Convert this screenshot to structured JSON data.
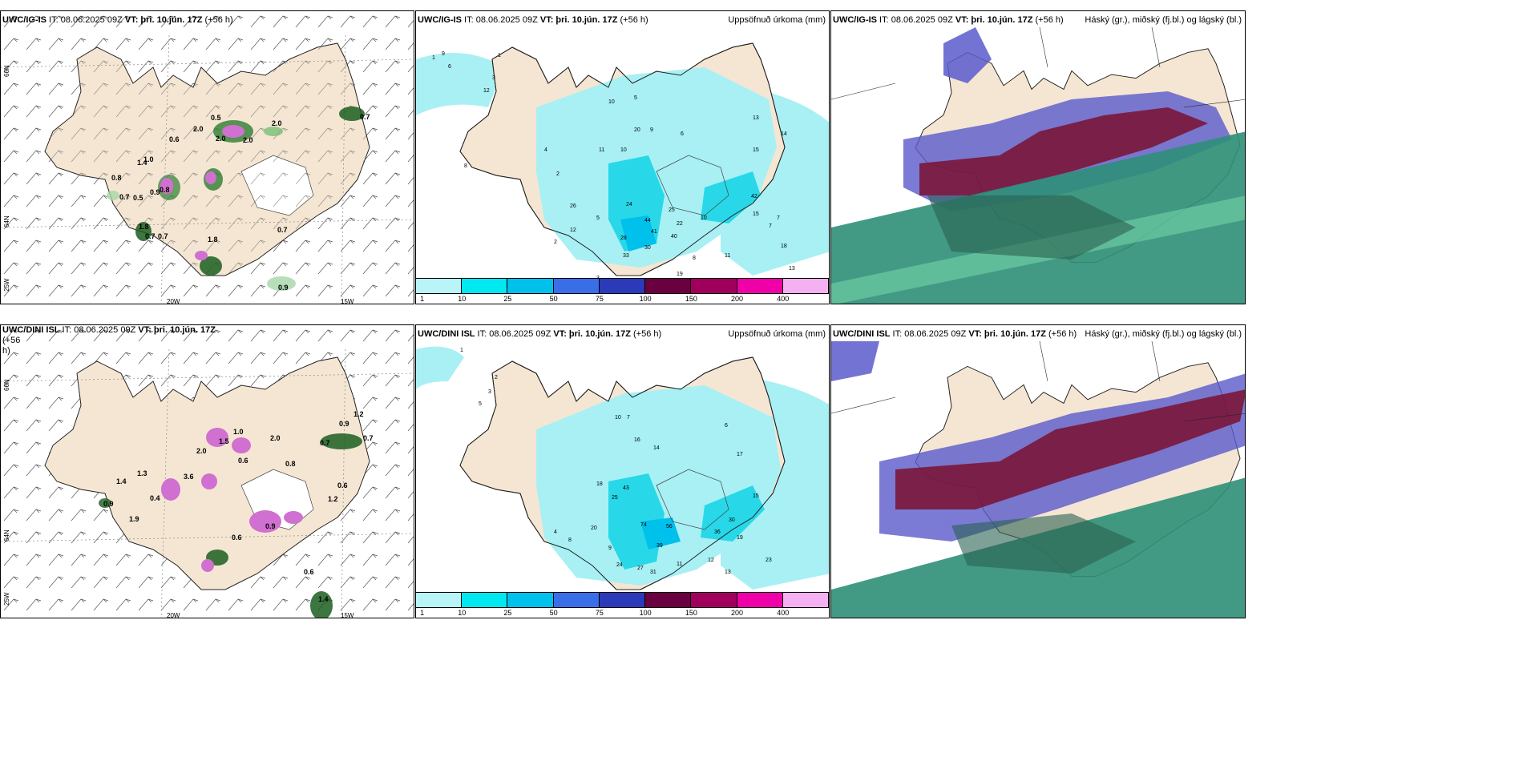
{
  "panels": {
    "p1": {
      "model": "UWC/IG-IS",
      "it": " IT: 08.06.2025 09Z ",
      "vt_label": "VT:",
      "vt_value": " þri. 10.jún. 17Z",
      "lead": " (+56 h)",
      "values": [
        "0.5",
        "2.0",
        "2.0",
        "2.0",
        "0.6",
        "2.0",
        "1.0",
        "1.4",
        "0.8",
        "0.7",
        "0.5",
        "0.9",
        "0.8",
        "0.7",
        "1.8",
        "0.7",
        "1.8",
        "0.7",
        "0.7",
        "0.9"
      ],
      "lat_labels": [
        "66N",
        "64N",
        "25W"
      ],
      "lon_labels": [
        "20W",
        "15W"
      ]
    },
    "p2": {
      "model": "UWC/IG-IS",
      "it": " IT: 08.06.2025 09Z ",
      "vt_label": "VT:",
      "vt_value": " þri. 10.jún. 17Z",
      "lead": " (+56 h)",
      "right_title": "Uppsöfnuð úrkoma (mm)",
      "values": [
        "1",
        "6",
        "9",
        "1",
        "3",
        "12",
        "4",
        "2",
        "10",
        "5",
        "20",
        "9",
        "6",
        "11",
        "10",
        "13",
        "15",
        "14",
        "7",
        "8",
        "42",
        "24",
        "44",
        "41",
        "25",
        "28",
        "35",
        "30",
        "33",
        "2",
        "11",
        "19",
        "10",
        "18",
        "13",
        "15",
        "12",
        "22",
        "40",
        "3",
        "8",
        "5",
        "26",
        "7"
      ]
    },
    "p3": {
      "model": "UWC/IG-IS",
      "it": " IT: 08.06.2025 09Z ",
      "vt_label": "VT:",
      "vt_value": " þri. 10.jún. 17Z",
      "lead": " (+56 h)",
      "right_title": "Háský (gr.), miðský (fj.bl.) og lágský (bl.)"
    },
    "p4": {
      "model": "UWC/DINI ISL",
      "it": " IT: 08.06.2025 09Z ",
      "vt_label": "VT:",
      "vt_value": " þri. 10.jún. 17Z",
      "lead": " (+56",
      "lead2": "h)",
      "values": [
        "1.0",
        "1.5",
        "2.0",
        "0.6",
        "2.0",
        "0.8",
        "0.9",
        "1.2",
        "0.7",
        "1.3",
        "1.4",
        "3.6",
        "0.4",
        "0.9",
        "1.9",
        "0.6",
        "1.2",
        "0.9",
        "0.7",
        "0.6",
        "0.6",
        "1.4"
      ],
      "lat_labels": [
        "66N",
        "64N",
        "25W"
      ],
      "lon_labels": [
        "20W",
        "15W"
      ]
    },
    "p5": {
      "model": "UWC/DINI ISL",
      "it": " IT: 08.06.2025 09Z ",
      "vt_label": "VT:",
      "vt_value": " þri. 10.jún. 17Z",
      "lead": " (+56 h)",
      "right_title": "Uppsöfnuð úrkoma (mm)",
      "values": [
        "1",
        "2",
        "3",
        "5",
        "7",
        "10",
        "16",
        "14",
        "18",
        "25",
        "43",
        "74",
        "56",
        "36",
        "30",
        "24",
        "27",
        "31",
        "39",
        "20",
        "17",
        "19",
        "23",
        "9",
        "11",
        "12",
        "15",
        "4",
        "6",
        "8",
        "13"
      ]
    },
    "p6": {
      "model": "UWC/DINI ISL",
      "it": " IT: 08.06.2025 09Z ",
      "vt_label": "VT:",
      "vt_value": " þri. 10.jún. 17Z",
      "lead": " (+56 h)",
      "right_title": "Háský (gr.), miðský (fj.bl.) og lágský (bl.)"
    }
  },
  "precip_scale": {
    "colors": [
      "#b8f4f8",
      "#00e8f0",
      "#00c0ec",
      "#3a6ee8",
      "#2a3ab8",
      "#6a0040",
      "#a0005c",
      "#f000a8",
      "#f4b0f0"
    ],
    "labels": [
      "1",
      "10",
      "25",
      "50",
      "75",
      "100",
      "150",
      "200",
      "400"
    ]
  },
  "colors": {
    "land": "#f5e6d3",
    "glacier": "#ffffff",
    "precip_light": "#a8f0f4",
    "precip_mid": "#28d8e8",
    "purple": "#5a5acc",
    "maroon": "#7a1030",
    "green": "#2e8f78"
  }
}
